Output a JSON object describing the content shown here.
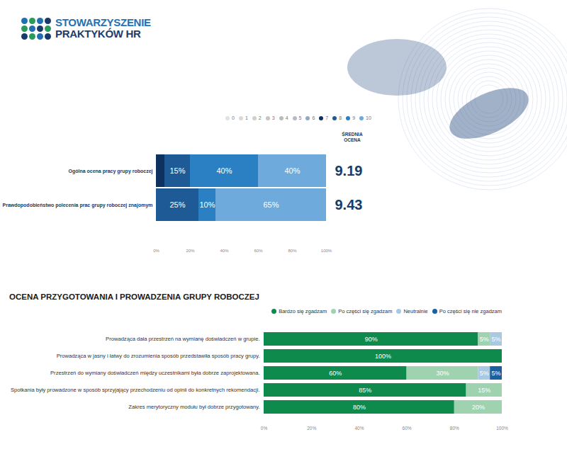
{
  "logo": [
    "STOWARZYSZENIE",
    "PRAKTYKÓW HR"
  ],
  "chart_data": [
    {
      "type": "bar",
      "orientation": "horizontal",
      "stacked": true,
      "data_labels": true,
      "legend": "top",
      "categories": [
        "Ogólna ocena pracy grupy roboczej",
        "Prawdopodobieństwo polecenia prac grupy roboczej znajomym"
      ],
      "series": [
        {
          "name": "0",
          "color": "#e2e2e2",
          "values": [
            null,
            null
          ]
        },
        {
          "name": "1",
          "color": "#d9d9d9",
          "values": [
            null,
            null
          ]
        },
        {
          "name": "2",
          "color": "#cfcfcf",
          "values": [
            null,
            null
          ]
        },
        {
          "name": "3",
          "color": "#c5c5c5",
          "values": [
            null,
            null
          ]
        },
        {
          "name": "4",
          "color": "#bbbbbb",
          "values": [
            null,
            null
          ]
        },
        {
          "name": "5",
          "color": "#b3bcc6",
          "values": [
            null,
            null
          ]
        },
        {
          "name": "6",
          "color": "#93a9bf",
          "values": [
            null,
            null
          ]
        },
        {
          "name": "7",
          "color": "#0f3160",
          "values": [
            5,
            null
          ]
        },
        {
          "name": "8",
          "color": "#1d5a96",
          "values": [
            15,
            25
          ],
          "value_labels": [
            "15%",
            "25%"
          ]
        },
        {
          "name": "9",
          "color": "#2b80c3",
          "values": [
            40,
            10
          ],
          "value_labels": [
            "40%",
            "10%"
          ]
        },
        {
          "name": "10",
          "color": "#6eaadb",
          "values": [
            40,
            65
          ],
          "value_labels": [
            "40%",
            "65%"
          ]
        }
      ],
      "xlim": [
        0,
        100
      ],
      "xticks": [
        {
          "value": 0,
          "label": "0%"
        },
        {
          "value": 20,
          "label": "20%"
        },
        {
          "value": 40,
          "label": "40%"
        },
        {
          "value": 60,
          "label": "60%"
        },
        {
          "value": 80,
          "label": "80%"
        },
        {
          "value": 100,
          "label": "100%"
        }
      ],
      "averages": {
        "label": "ŚREDNIA OCENA",
        "values": [
          9.19,
          9.43
        ]
      }
    },
    {
      "type": "bar",
      "title": "OCENA PRZYGOTOWANIA I PROWADZENIA GRUPY ROBOCZEJ",
      "orientation": "horizontal",
      "stacked": true,
      "data_labels": true,
      "legend": "top-right",
      "categories": [
        "Prowadząca dała przestrzeń na wymianę doświadczeń w grupie.",
        "Prowadząca w jasny i łatwy do zrozumienia sposób przedstawiła sposób pracy grupy.",
        "Przestrzeń do wymiany doświadczeń między uczestnikami była dobrze zaprojektowana.",
        "Spotkania były prowadzone w sposób sprzyjający przechodzeniu od opinii do konkretnych rekomendacji.",
        "Zakres merytoryczny modułu był dobrze przygotowany."
      ],
      "series": [
        {
          "name": "Bardzo się zgadzam",
          "color": "#0e8a4c",
          "values": [
            90,
            100,
            60,
            85,
            80
          ],
          "value_labels": [
            "90%",
            "100%",
            "60%",
            "85%",
            "80%"
          ]
        },
        {
          "name": "Po części się zgadzam",
          "color": "#9fd3b0",
          "values": [
            5,
            null,
            30,
            15,
            20
          ],
          "value_labels": [
            "5%",
            null,
            "30%",
            "15%",
            "20%"
          ]
        },
        {
          "name": "Neutralnie",
          "color": "#a8c8e3",
          "values": [
            5,
            null,
            5,
            null,
            null
          ],
          "value_labels": [
            "5%",
            null,
            "5%",
            null,
            null
          ]
        },
        {
          "name": "Po części się nie zgadzam",
          "color": "#1b5f9e",
          "values": [
            null,
            null,
            5,
            null,
            null
          ],
          "value_labels": [
            null,
            null,
            "5%",
            null,
            null
          ]
        }
      ],
      "xlim": [
        0,
        100
      ],
      "xticks": [
        {
          "value": 0,
          "label": "0%"
        },
        {
          "value": 20,
          "label": "20%"
        },
        {
          "value": 40,
          "label": "40%"
        },
        {
          "value": 60,
          "label": "60%"
        },
        {
          "value": 80,
          "label": "80%"
        },
        {
          "value": 100,
          "label": "100%"
        }
      ]
    }
  ]
}
